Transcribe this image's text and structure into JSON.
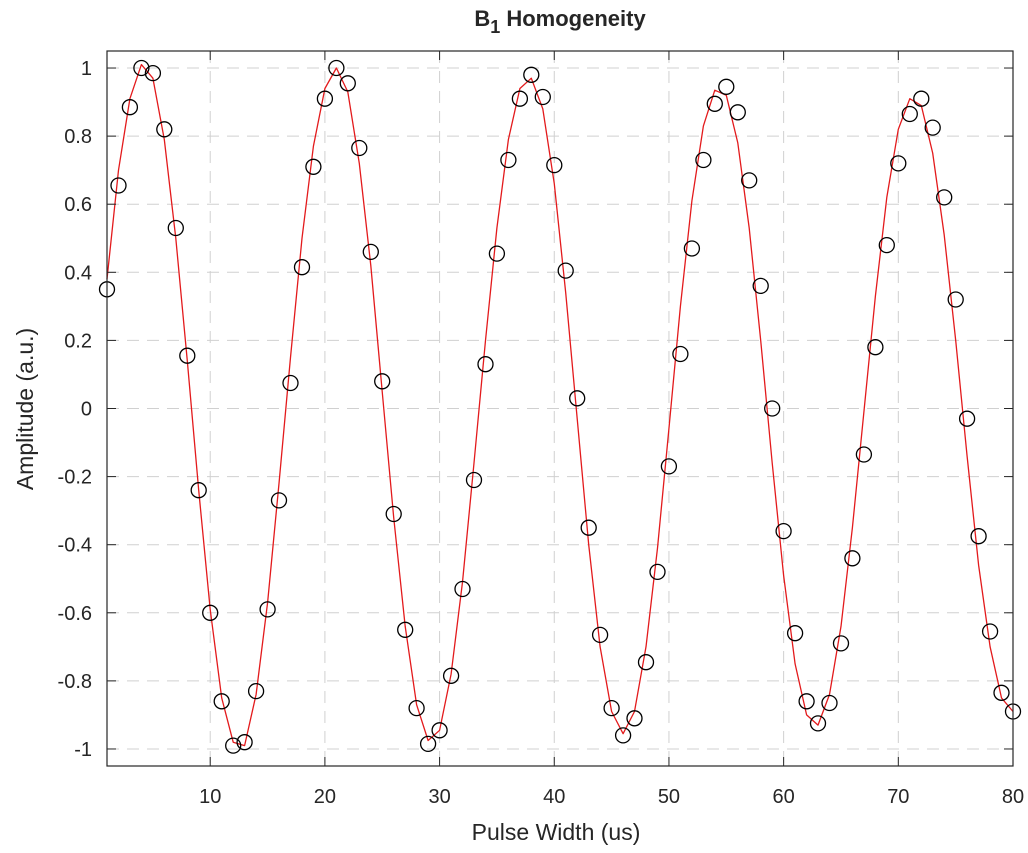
{
  "chart_data": {
    "type": "scatter",
    "title": "B",
    "title_subscript": "1",
    "title_rest": " Homogeneity",
    "xlabel": "Pulse Width (us)",
    "ylabel": "Amplitude (a.u.)",
    "xlim": [
      1,
      80
    ],
    "ylim": [
      -1.05,
      1.05
    ],
    "grid": true,
    "xticks": [
      10,
      20,
      30,
      40,
      50,
      60,
      70,
      80
    ],
    "yticks": [
      -1,
      -0.8,
      -0.6,
      -0.4,
      -0.2,
      0,
      0.2,
      0.4,
      0.6,
      0.8,
      1
    ],
    "xtick_labels": [
      "10",
      "20",
      "30",
      "40",
      "50",
      "60",
      "70",
      "80"
    ],
    "ytick_labels": [
      "-1",
      "-0.8",
      "-0.6",
      "-0.4",
      "-0.2",
      "0",
      "0.2",
      "0.4",
      "0.6",
      "0.8",
      "1"
    ],
    "series": [
      {
        "kind": "markers",
        "marker": "open-circle",
        "color": "#000000",
        "x": [
          1,
          2,
          3,
          4,
          5,
          6,
          7,
          8,
          9,
          10,
          11,
          12,
          13,
          14,
          15,
          16,
          17,
          18,
          19,
          20,
          21,
          22,
          23,
          24,
          25,
          26,
          27,
          28,
          29,
          30,
          31,
          32,
          33,
          34,
          35,
          36,
          37,
          38,
          39,
          40,
          41,
          42,
          43,
          44,
          45,
          46,
          47,
          48,
          49,
          50,
          51,
          52,
          53,
          54,
          55,
          56,
          57,
          58,
          59,
          60,
          61,
          62,
          63,
          64,
          65,
          66,
          67,
          68,
          69,
          70,
          71,
          72,
          73,
          74,
          75,
          76,
          77,
          78,
          79,
          80
        ],
        "y": [
          0.35,
          0.655,
          0.885,
          1.0,
          0.985,
          0.82,
          0.53,
          0.155,
          -0.24,
          -0.6,
          -0.86,
          -0.99,
          -0.98,
          -0.83,
          -0.59,
          -0.27,
          0.075,
          0.415,
          0.71,
          0.91,
          1.0,
          0.955,
          0.765,
          0.46,
          0.08,
          -0.31,
          -0.65,
          -0.88,
          -0.985,
          -0.945,
          -0.785,
          -0.53,
          -0.21,
          0.13,
          0.455,
          0.73,
          0.91,
          0.98,
          0.915,
          0.715,
          0.405,
          0.03,
          -0.35,
          -0.665,
          -0.88,
          -0.96,
          -0.91,
          -0.745,
          -0.48,
          -0.17,
          0.16,
          0.47,
          0.73,
          0.895,
          0.945,
          0.87,
          0.67,
          0.36,
          0.0,
          -0.36,
          -0.66,
          -0.86,
          -0.925,
          -0.865,
          -0.69,
          -0.44,
          -0.135,
          0.18,
          0.48,
          0.72,
          0.865,
          0.91,
          0.825,
          0.62,
          0.32,
          -0.03,
          -0.375,
          -0.655,
          -0.835,
          -0.89
        ]
      },
      {
        "kind": "line",
        "color": "#e31a1c",
        "x": [
          1,
          2,
          3,
          4,
          5,
          6,
          7,
          8,
          9,
          10,
          11,
          12,
          13,
          14,
          15,
          16,
          17,
          18,
          19,
          20,
          21,
          22,
          23,
          24,
          25,
          26,
          27,
          28,
          29,
          30,
          31,
          32,
          33,
          34,
          35,
          36,
          37,
          38,
          39,
          40,
          41,
          42,
          43,
          44,
          45,
          46,
          47,
          48,
          49,
          50,
          51,
          52,
          53,
          54,
          55,
          56,
          57,
          58,
          59,
          60,
          61,
          62,
          63,
          64,
          65,
          66,
          67,
          68,
          69,
          70,
          71,
          72,
          73,
          74,
          75,
          76,
          77,
          78,
          79,
          80
        ],
        "y": [
          0.38,
          0.7,
          0.91,
          1.01,
          0.97,
          0.79,
          0.5,
          0.14,
          -0.24,
          -0.59,
          -0.85,
          -0.98,
          -0.99,
          -0.84,
          -0.57,
          -0.22,
          0.15,
          0.5,
          0.77,
          0.94,
          1.0,
          0.93,
          0.72,
          0.42,
          0.05,
          -0.32,
          -0.64,
          -0.87,
          -0.975,
          -0.945,
          -0.78,
          -0.51,
          -0.16,
          0.2,
          0.53,
          0.79,
          0.94,
          0.97,
          0.88,
          0.66,
          0.34,
          -0.03,
          -0.4,
          -0.7,
          -0.89,
          -0.955,
          -0.89,
          -0.7,
          -0.41,
          -0.06,
          0.3,
          0.61,
          0.83,
          0.935,
          0.92,
          0.78,
          0.53,
          0.2,
          -0.16,
          -0.49,
          -0.75,
          -0.9,
          -0.93,
          -0.84,
          -0.64,
          -0.35,
          -0.01,
          0.33,
          0.62,
          0.82,
          0.91,
          0.89,
          0.75,
          0.51,
          0.2,
          -0.14,
          -0.46,
          -0.7,
          -0.85,
          -0.89
        ]
      }
    ]
  }
}
